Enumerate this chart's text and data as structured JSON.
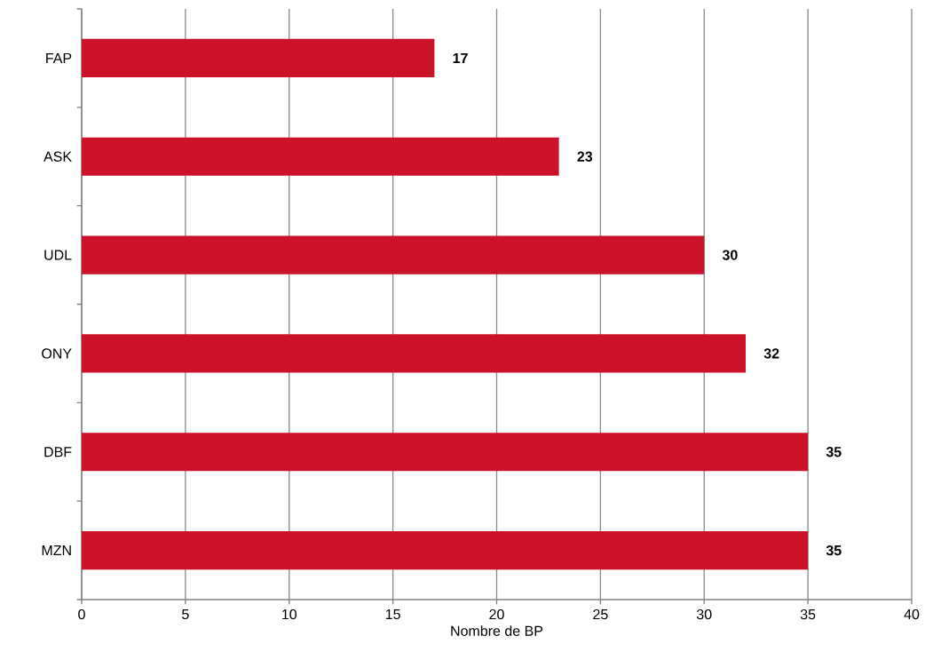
{
  "chart_data": {
    "type": "bar",
    "orientation": "horizontal",
    "xlabel": "Nombre de BP",
    "categories": [
      "FAP",
      "ASK",
      "UDL",
      "ONY",
      "DBF",
      "MZN"
    ],
    "values": [
      17,
      23,
      30,
      32,
      35,
      35
    ],
    "color": "#cc1228",
    "xlim": [
      0,
      40
    ],
    "xticks": [
      0,
      5,
      10,
      15,
      20,
      25,
      30,
      35,
      40
    ],
    "grid": "x",
    "data_labels": true
  }
}
